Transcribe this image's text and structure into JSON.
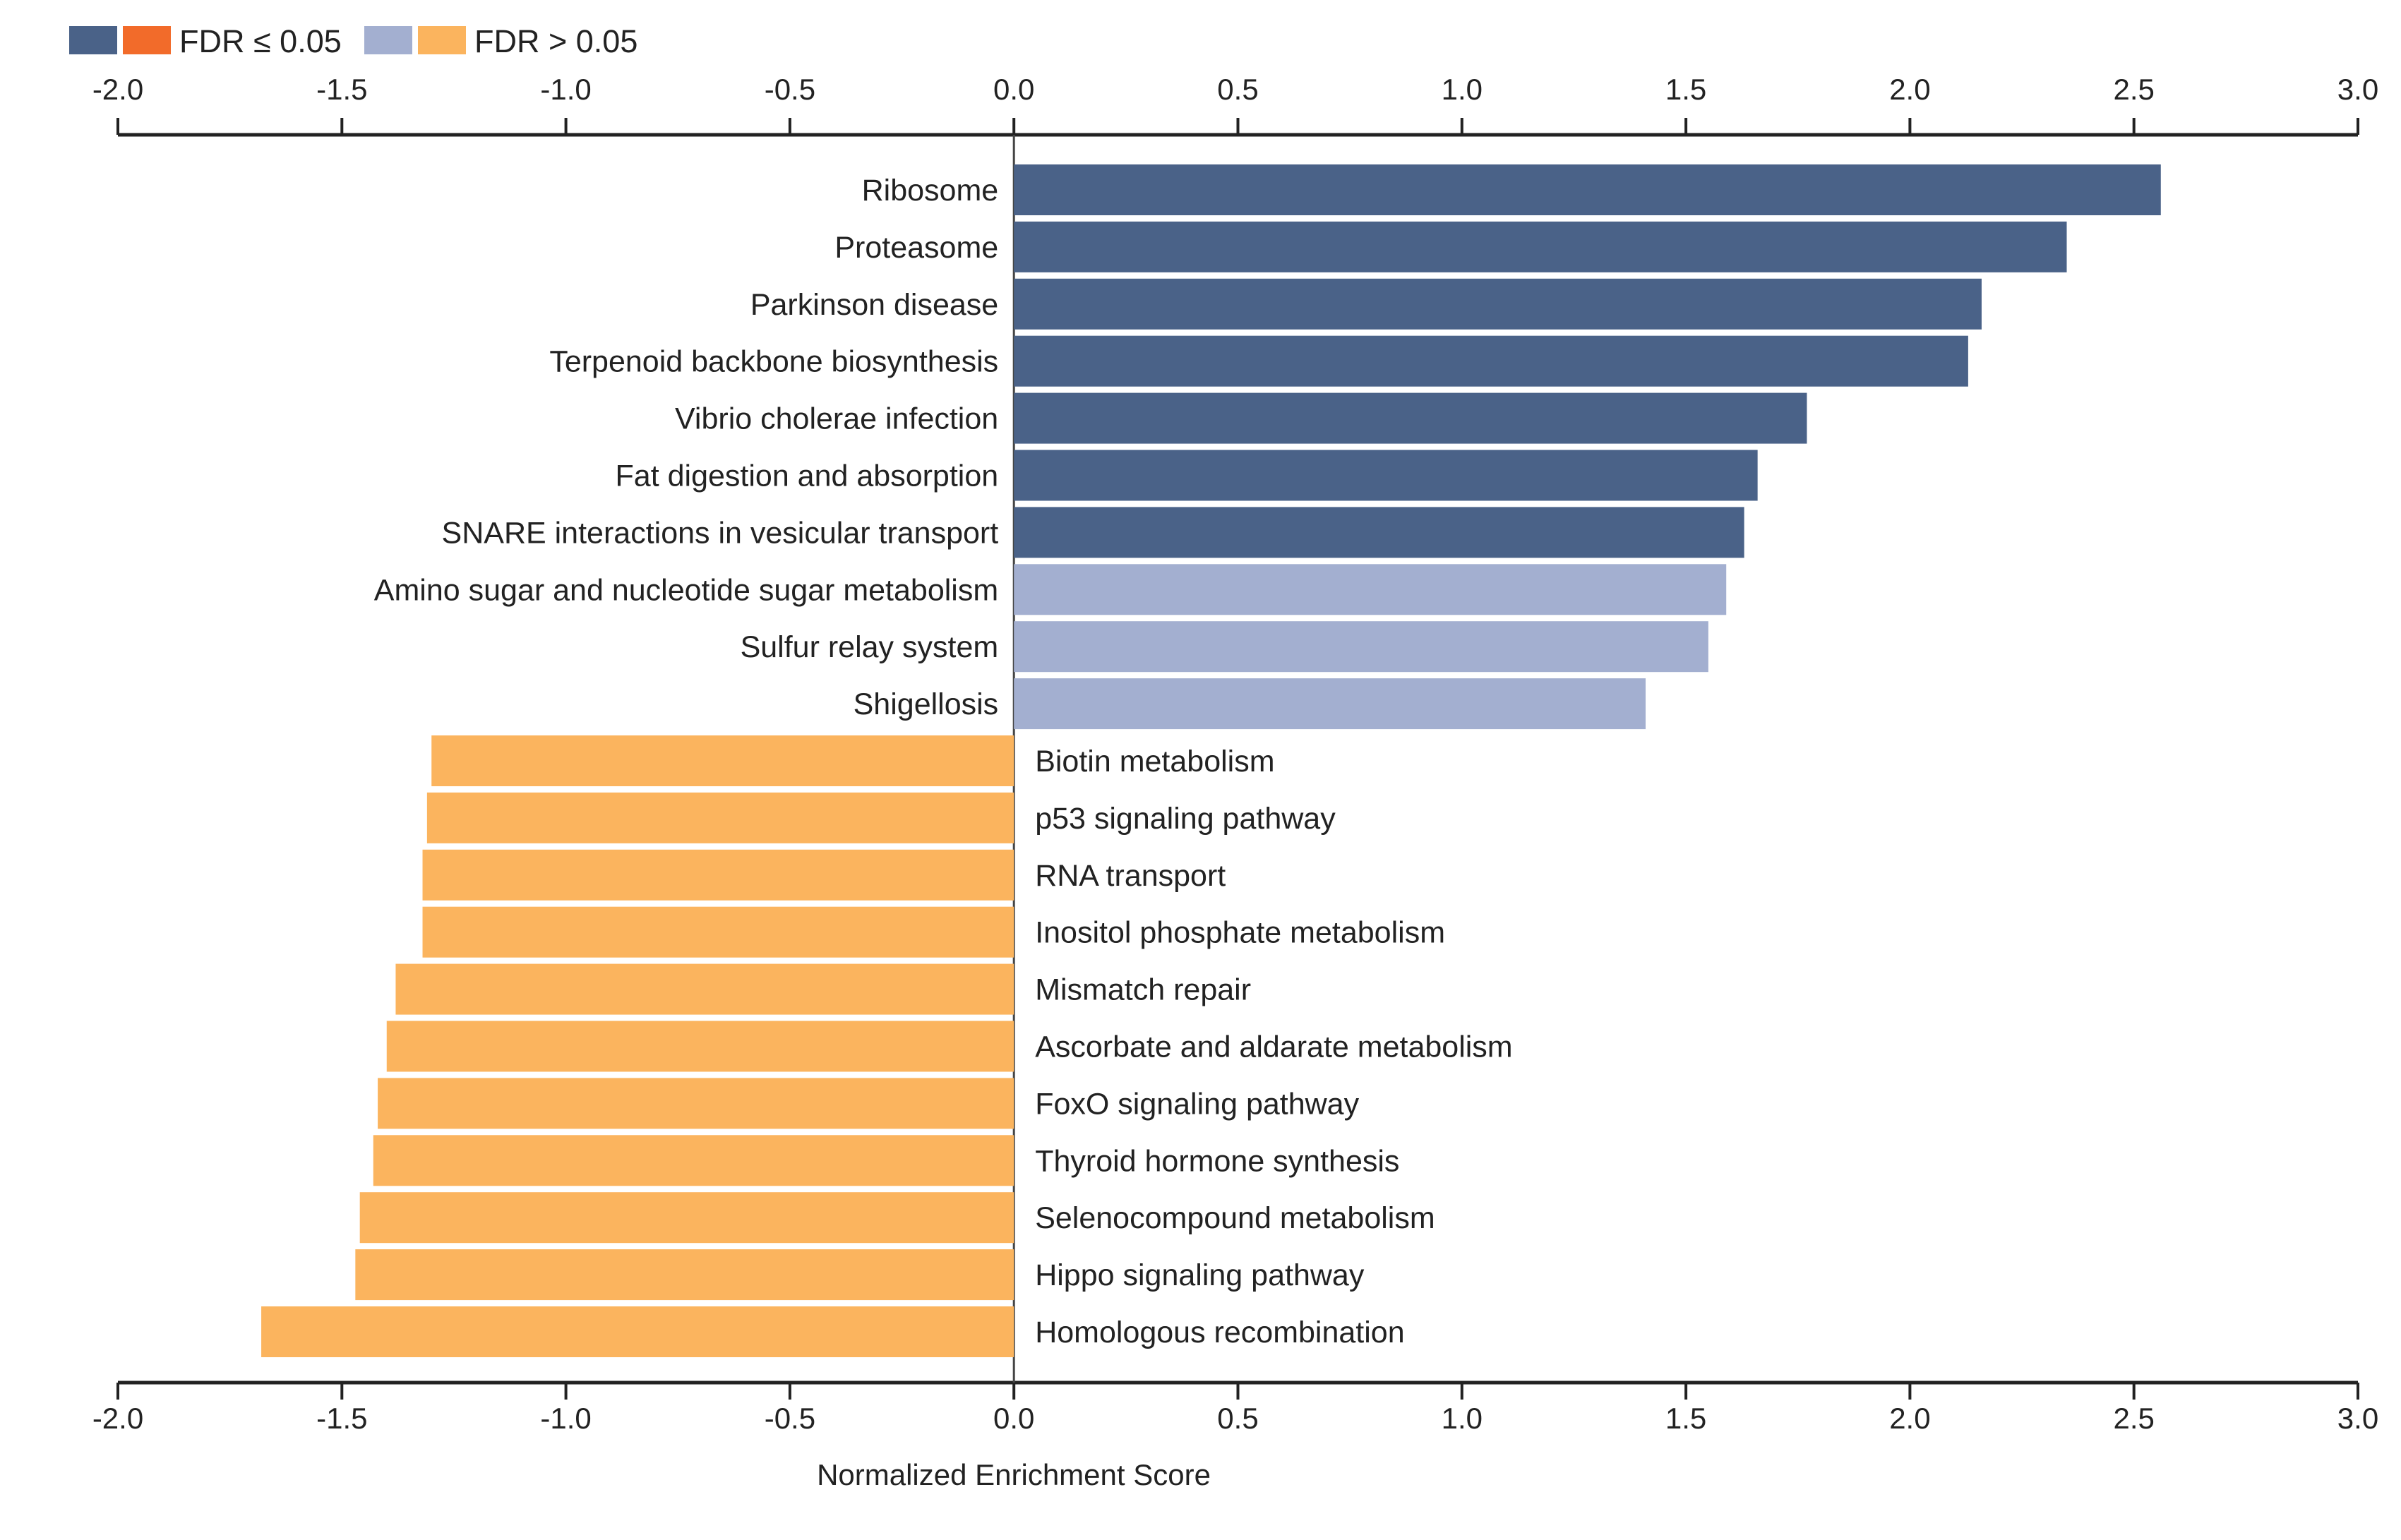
{
  "chart_data": {
    "type": "bar",
    "orientation": "horizontal",
    "xlabel": "Normalized Enrichment Score",
    "xlim": [
      -2.0,
      3.0
    ],
    "ticks": [
      "-2.0",
      "-1.5",
      "-1.0",
      "-0.5",
      "0.0",
      "0.5",
      "1.0",
      "1.5",
      "2.0",
      "2.5",
      "3.0"
    ],
    "tick_values": [
      -2.0,
      -1.5,
      -1.0,
      -0.5,
      0.0,
      0.5,
      1.0,
      1.5,
      2.0,
      2.5,
      3.0
    ],
    "legend": {
      "placement": "top-left",
      "entries": [
        {
          "label": "FDR ≤ 0.05",
          "colors": [
            "#4a6288",
            "#f26b2a"
          ]
        },
        {
          "label": "FDR > 0.05",
          "colors": [
            "#a3afd0",
            "#fbb45e"
          ]
        }
      ]
    },
    "colors": {
      "pos_sig": "#4a6288",
      "neg_sig": "#f26b2a",
      "pos_ns": "#a3afd0",
      "neg_ns": "#fbb45e"
    },
    "categories": [
      "Ribosome",
      "Proteasome",
      "Parkinson disease",
      "Terpenoid backbone biosynthesis",
      "Vibrio cholerae infection",
      "Fat digestion and absorption",
      "SNARE interactions in vesicular transport",
      "Amino sugar and nucleotide sugar metabolism",
      "Sulfur relay system",
      "Shigellosis",
      "Biotin metabolism",
      "p53 signaling pathway",
      "RNA transport",
      "Inositol phosphate metabolism",
      "Mismatch repair",
      "Ascorbate and aldarate metabolism",
      "FoxO signaling pathway",
      "Thyroid hormone synthesis",
      "Selenocompound metabolism",
      "Hippo signaling pathway",
      "Homologous recombination"
    ],
    "values": [
      2.56,
      2.35,
      2.16,
      2.13,
      1.77,
      1.66,
      1.63,
      1.59,
      1.55,
      1.41,
      -1.3,
      -1.31,
      -1.32,
      -1.32,
      -1.38,
      -1.4,
      -1.42,
      -1.43,
      -1.46,
      -1.47,
      -1.68
    ],
    "significant": [
      true,
      true,
      true,
      true,
      true,
      true,
      true,
      false,
      false,
      false,
      false,
      false,
      false,
      false,
      false,
      false,
      false,
      false,
      false,
      false,
      false
    ]
  }
}
